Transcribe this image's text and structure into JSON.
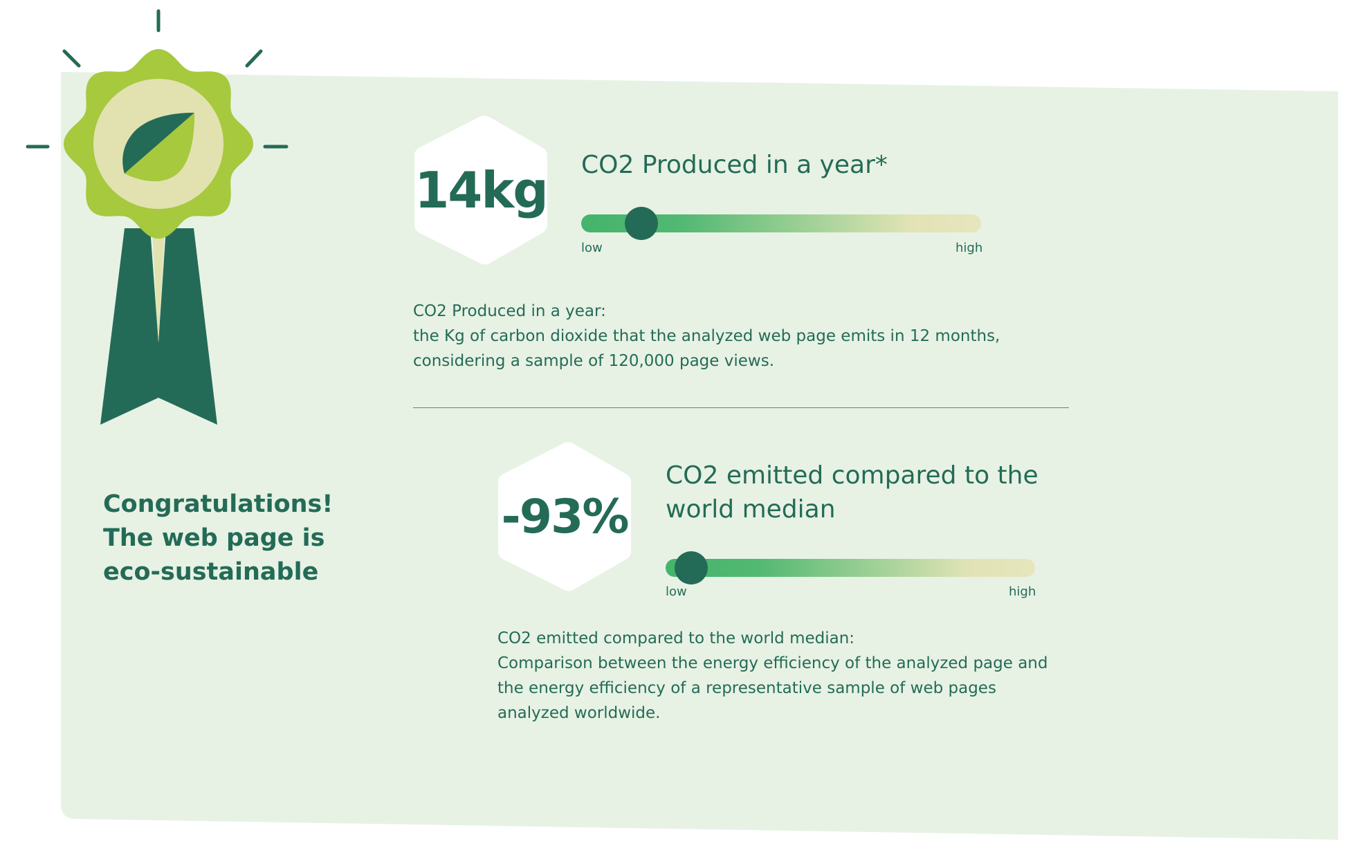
{
  "badge": {
    "colors": {
      "rosette": "#a6c93e",
      "inner": "#e2e2b0",
      "leaf": "#246b57",
      "ribbon": "#246b57"
    }
  },
  "congratulations": "Congratulations! The web page is eco-sustainable",
  "metrics": [
    {
      "value": "14kg",
      "title": "CO2 Produced in a year*",
      "level": 0.15,
      "low_label": "low",
      "high_label": "high",
      "description_heading": "CO2 Produced in a year:",
      "description_body": "the Kg of carbon dioxide that the analyzed web page emits in 12 months, considering a sample of 120,000 page views."
    },
    {
      "value": "-93%",
      "title": "CO2 emitted compared to the world median",
      "level": 0.07,
      "low_label": "low",
      "high_label": "high",
      "description_heading": "CO2 emitted compared to the world median:",
      "description_body": "Comparison between the energy efficiency of the analyzed page and the energy efficiency of a representative sample of web pages analyzed worldwide."
    }
  ],
  "colors": {
    "panel": "#e7f2e4",
    "text": "#246b57",
    "hexagon": "#ffffff",
    "gradient_low": "#45b46c",
    "gradient_high": "#e6e6bc"
  }
}
